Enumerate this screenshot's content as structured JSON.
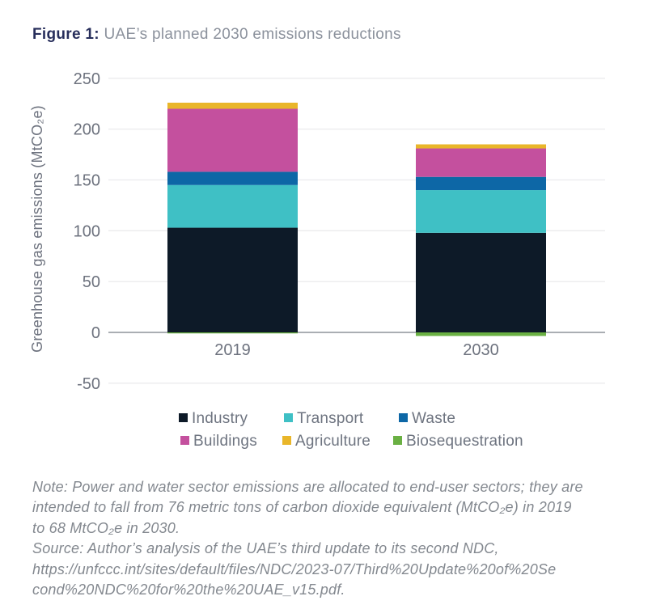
{
  "figure": {
    "caption_label": "Figure 1:",
    "caption_text": " UAE’s planned 2030 emissions reductions"
  },
  "chart_data": {
    "type": "bar",
    "stacked": true,
    "title": "Figure 1: UAE’s planned 2030 emissions reductions",
    "categories": [
      "2019",
      "2030"
    ],
    "series": [
      {
        "name": "Industry",
        "color": "#0d1a28",
        "values": [
          103,
          98
        ]
      },
      {
        "name": "Transport",
        "color": "#3fc0c5",
        "values": [
          42,
          42
        ]
      },
      {
        "name": "Waste",
        "color": "#0d67a6",
        "values": [
          13,
          13
        ]
      },
      {
        "name": "Buildings",
        "color": "#c4509e",
        "values": [
          62,
          28
        ]
      },
      {
        "name": "Agriculture",
        "color": "#e9b62a",
        "values": [
          6,
          4
        ]
      },
      {
        "name": "Biosequestration",
        "color": "#6ab043",
        "values": [
          -1,
          -3.5
        ]
      }
    ],
    "xlabel": "",
    "ylabel": "Greenhouse gas emissions (MtCO₂e)",
    "yticks": [
      250,
      200,
      150,
      100,
      50,
      0,
      -50
    ],
    "ylim": [
      -50,
      250
    ],
    "grid": true,
    "legend_position": "bottom",
    "gridline_color": "#ebebed",
    "zero_line_color": "#aaaeb3",
    "tick_label_color": "#6d727e",
    "axis_title_color": "#6e737f"
  },
  "legend": {
    "items": [
      "Industry",
      "Transport",
      "Waste",
      "Buildings",
      "Agriculture",
      "Biosequestration"
    ]
  },
  "note": {
    "lines": [
      "Note: Power and water sector emissions are allocated to end-user sectors; they are",
      "intended to fall from 76 metric tons of carbon dioxide equivalent (MtCO₂e) in 2019",
      "to 68 MtCO₂e in 2030.",
      "Source: Author’s analysis of the UAE’s third update to its second NDC,",
      "https://unfccc.int/sites/default/files/NDC/2023-07/Third%20Update%20of%20Se",
      "cond%20NDC%20for%20the%20UAE_v15.pdf."
    ]
  }
}
